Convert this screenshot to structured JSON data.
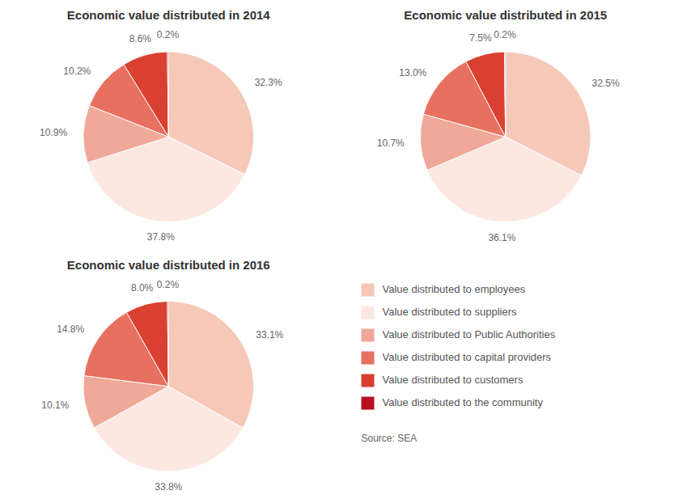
{
  "chart_data": [
    {
      "type": "pie",
      "title": "Economic value distributed in 2014",
      "categories": [
        "Value distributed to employees",
        "Value distributed to suppliers",
        "Value distributed to Public Authorities",
        "Value distributed to capital providers",
        "Value distributed to customers",
        "Value distributed to the community"
      ],
      "values": [
        32.3,
        37.8,
        10.9,
        10.2,
        8.6,
        0.2
      ],
      "value_labels": [
        "32.3%",
        "37.8%",
        "10.9%",
        "10.2%",
        "8.6%",
        "0.2%"
      ],
      "colors": [
        "#f5c8b8",
        "#fce8e0",
        "#f0a898",
        "#e87060",
        "#d94030",
        "#b81020"
      ],
      "data_labels": true,
      "legend": "lower right"
    },
    {
      "type": "pie",
      "title": "Economic value distributed in 2015",
      "values": [
        32.5,
        36.1,
        10.7,
        13.0,
        7.5,
        0.2
      ],
      "value_labels": [
        "32.5%",
        "36.1%",
        "10.7%",
        "13.0%",
        "7.5%",
        "0.2%"
      ],
      "colors": [
        "#f5c8b8",
        "#fce8e0",
        "#f0a898",
        "#e87060",
        "#d94030",
        "#b81020"
      ],
      "data_labels": true
    },
    {
      "type": "pie",
      "title": "Economic value distributed in 2016",
      "values": [
        33.1,
        33.8,
        10.1,
        14.8,
        8.0,
        0.2
      ],
      "value_labels": [
        "33.1%",
        "33.8%",
        "10.1%",
        "14.8%",
        "8.0%",
        "0.2%"
      ],
      "colors": [
        "#f5c8b8",
        "#fce8e0",
        "#f0a898",
        "#e87060",
        "#d94030",
        "#b81020"
      ],
      "data_labels": true,
      "annotations": [
        "Source: SEA"
      ]
    }
  ]
}
